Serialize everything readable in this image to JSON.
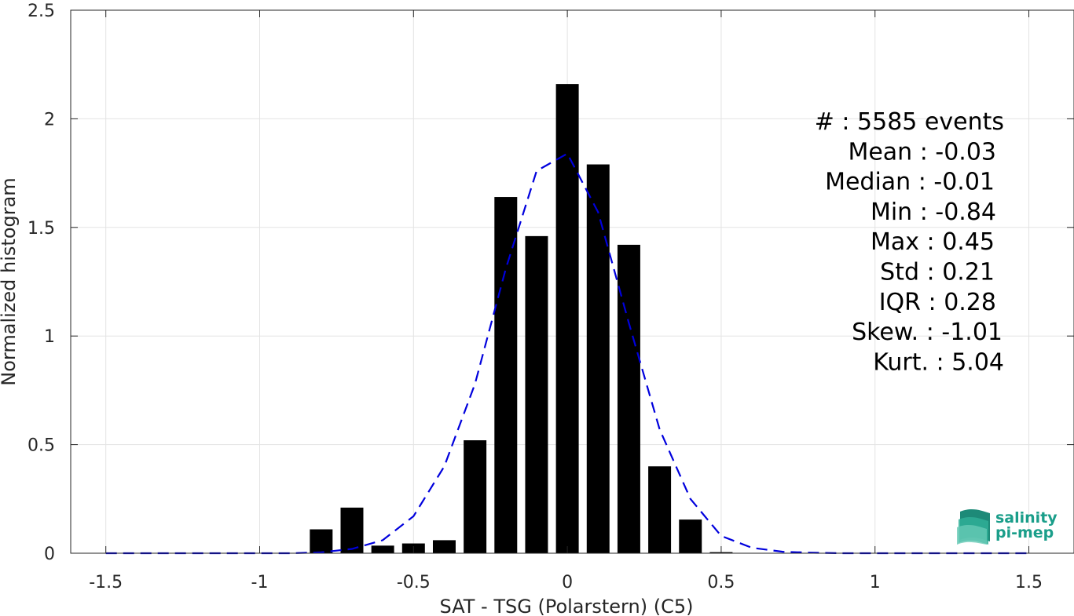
{
  "chart_data": {
    "type": "bar",
    "xlabel": "SAT - TSG (Polarstern) (C5)",
    "ylabel": "Normalized histogram",
    "xlim": [
      -1.5,
      1.5
    ],
    "ylim": [
      0,
      2.5
    ],
    "xticks": [
      "-1.5",
      "-1",
      "-0.5",
      "0",
      "0.5",
      "1",
      "1.5"
    ],
    "yticks": [
      "0",
      "0.5",
      "1",
      "1.5",
      "2",
      "2.5"
    ],
    "grid": true,
    "bar_color": "#000000",
    "series": [
      {
        "type": "bar",
        "x": [
          -0.8,
          -0.7,
          -0.6,
          -0.5,
          -0.4,
          -0.3,
          -0.2,
          -0.1,
          0.0,
          0.1,
          0.2,
          0.3,
          0.4,
          0.5
        ],
        "values": [
          0.11,
          0.21,
          0.035,
          0.045,
          0.06,
          0.52,
          1.64,
          1.46,
          2.16,
          1.79,
          1.42,
          0.4,
          0.155,
          0.005
        ]
      },
      {
        "type": "line",
        "style": "dashed",
        "color": "#0000dd",
        "x": [
          -1.5,
          -1.4,
          -1.3,
          -1.2,
          -1.1,
          -1.0,
          -0.9,
          -0.8,
          -0.7,
          -0.6,
          -0.5,
          -0.4,
          -0.3,
          -0.2,
          -0.1,
          0.0,
          0.1,
          0.2,
          0.3,
          0.4,
          0.5,
          0.6,
          0.7,
          0.8,
          0.9,
          1.0,
          1.1,
          1.2,
          1.3,
          1.4,
          1.5
        ],
        "values": [
          0.0,
          0.0,
          0.0,
          0.0,
          0.0,
          0.0,
          0.0,
          0.004,
          0.02,
          0.06,
          0.17,
          0.4,
          0.78,
          1.31,
          1.76,
          1.84,
          1.57,
          1.06,
          0.57,
          0.25,
          0.08,
          0.025,
          0.007,
          0.002,
          0.0,
          0.0,
          0.0,
          0.0,
          0.0,
          0.0,
          0.0
        ]
      }
    ],
    "stats": [
      "#  : 5585 events",
      "Mean : -0.03",
      "Median : -0.01",
      "Min : -0.84",
      "Max : 0.45",
      "Std : 0.21",
      "IQR : 0.28",
      "Skew. : -1.01",
      "Kurt. : 5.04"
    ]
  },
  "logo": {
    "line1": "salinity",
    "line2": "pi-mep",
    "color": "#1a9e8a"
  }
}
